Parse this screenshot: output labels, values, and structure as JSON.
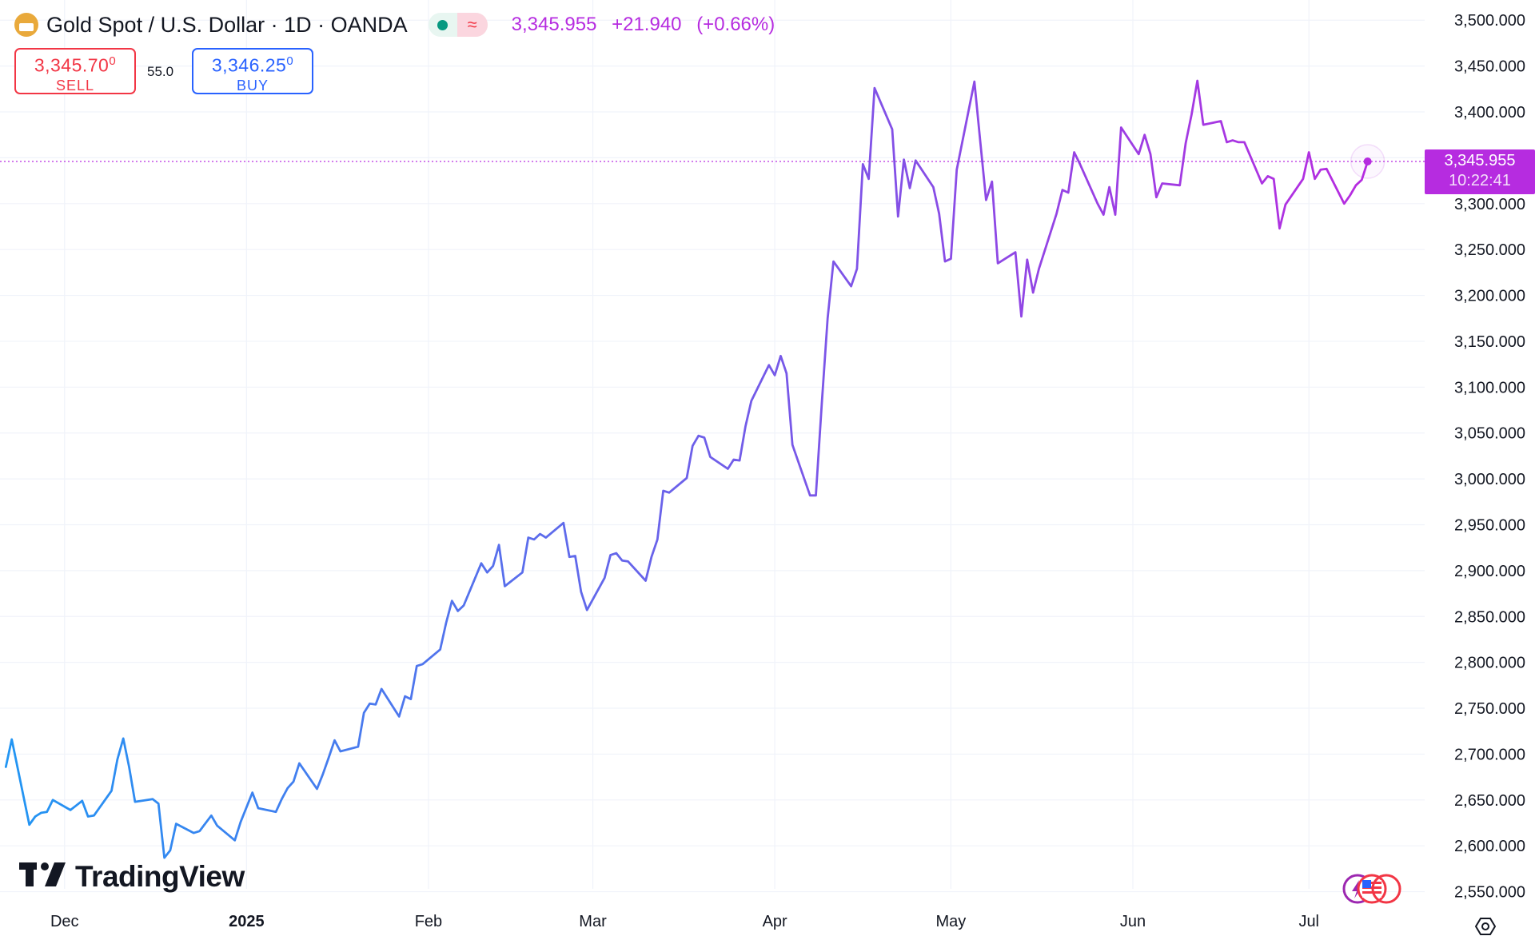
{
  "header": {
    "symbol": "Gold Spot / U.S. Dollar · 1D · OANDA",
    "market_status": "open",
    "delayed_icon": "≈",
    "last_price": "3,345.955",
    "change": "+21.940",
    "change_pct": "(+0.66%)"
  },
  "trade": {
    "sell_price": "3,345.70",
    "sell_price_sup": "0",
    "sell_label": "SELL",
    "spread": "55.0",
    "buy_price": "3,346.25",
    "buy_price_sup": "0",
    "buy_label": "BUY"
  },
  "last_tag": {
    "price": "3,345.955",
    "countdown": "10:22:41"
  },
  "watermark": "TradingView",
  "colors": {
    "line_start": "#2196f3",
    "line_end": "#b62ce0",
    "sell": "#f23645",
    "buy": "#2962ff",
    "grid": "#f0f3fa",
    "axis_text": "#131722"
  },
  "icons": {
    "logo": "gold-coin-icon",
    "settings": "gear-icon",
    "badge": "us-flag-icon"
  },
  "chart_data": {
    "type": "line",
    "title": "Gold Spot / U.S. Dollar · 1D · OANDA",
    "xlabel": "",
    "ylabel": "",
    "grid": true,
    "ylim": [
      2520,
      3522
    ],
    "y_ticks": [
      "3,500.000",
      "3,450.000",
      "3,400.000",
      "3,350.000",
      "3,300.000",
      "3,250.000",
      "3,200.000",
      "3,150.000",
      "3,100.000",
      "3,050.000",
      "3,000.000",
      "2,950.000",
      "2,900.000",
      "2,850.000",
      "2,800.000",
      "2,750.000",
      "2,700.000",
      "2,650.000",
      "2,600.000",
      "2,550.000"
    ],
    "y_tick_values": [
      3500,
      3450,
      3400,
      3350,
      3300,
      3250,
      3200,
      3150,
      3100,
      3050,
      3000,
      2950,
      2900,
      2850,
      2800,
      2750,
      2700,
      2650,
      2600,
      2550
    ],
    "x_ticks": [
      "Dec",
      "2025",
      "Feb",
      "Mar",
      "Apr",
      "May",
      "Jun",
      "Jul"
    ],
    "x_tick_dates": [
      "2024-12-01",
      "2025-01-01",
      "2025-02-01",
      "2025-03-01",
      "2025-04-01",
      "2025-05-01",
      "2025-06-01",
      "2025-07-01"
    ],
    "x_tick_bold": [
      false,
      true,
      false,
      false,
      false,
      false,
      false,
      false
    ],
    "series": [
      {
        "x": [
          "2024-11-21",
          "2024-11-22",
          "2024-11-25",
          "2024-11-26",
          "2024-11-27",
          "2024-11-28",
          "2024-11-29",
          "2024-12-02",
          "2024-12-03",
          "2024-12-04",
          "2024-12-05",
          "2024-12-06",
          "2024-12-09",
          "2024-12-10",
          "2024-12-11",
          "2024-12-12",
          "2024-12-13",
          "2024-12-16",
          "2024-12-17",
          "2024-12-18",
          "2024-12-19",
          "2024-12-20",
          "2024-12-23",
          "2024-12-24",
          "2024-12-26",
          "2024-12-27",
          "2024-12-30",
          "2024-12-31",
          "2025-01-02",
          "2025-01-03",
          "2025-01-06",
          "2025-01-07",
          "2025-01-08",
          "2025-01-09",
          "2025-01-10",
          "2025-01-13",
          "2025-01-14",
          "2025-01-15",
          "2025-01-16",
          "2025-01-17",
          "2025-01-20",
          "2025-01-21",
          "2025-01-22",
          "2025-01-23",
          "2025-01-24",
          "2025-01-27",
          "2025-01-28",
          "2025-01-29",
          "2025-01-30",
          "2025-01-31",
          "2025-02-03",
          "2025-02-04",
          "2025-02-05",
          "2025-02-06",
          "2025-02-07",
          "2025-02-10",
          "2025-02-11",
          "2025-02-12",
          "2025-02-13",
          "2025-02-14",
          "2025-02-17",
          "2025-02-18",
          "2025-02-19",
          "2025-02-20",
          "2025-02-21",
          "2025-02-24",
          "2025-02-25",
          "2025-02-26",
          "2025-02-27",
          "2025-02-28",
          "2025-03-03",
          "2025-03-04",
          "2025-03-05",
          "2025-03-06",
          "2025-03-07",
          "2025-03-10",
          "2025-03-11",
          "2025-03-12",
          "2025-03-13",
          "2025-03-14",
          "2025-03-17",
          "2025-03-18",
          "2025-03-19",
          "2025-03-20",
          "2025-03-21",
          "2025-03-24",
          "2025-03-25",
          "2025-03-26",
          "2025-03-27",
          "2025-03-28",
          "2025-03-31",
          "2025-04-01",
          "2025-04-02",
          "2025-04-03",
          "2025-04-04",
          "2025-04-07",
          "2025-04-08",
          "2025-04-09",
          "2025-04-10",
          "2025-04-11",
          "2025-04-14",
          "2025-04-15",
          "2025-04-16",
          "2025-04-17",
          "2025-04-18",
          "2025-04-21",
          "2025-04-22",
          "2025-04-23",
          "2025-04-24",
          "2025-04-25",
          "2025-04-28",
          "2025-04-29",
          "2025-04-30",
          "2025-05-01",
          "2025-05-02",
          "2025-05-05",
          "2025-05-06",
          "2025-05-07",
          "2025-05-08",
          "2025-05-09",
          "2025-05-12",
          "2025-05-13",
          "2025-05-14",
          "2025-05-15",
          "2025-05-16",
          "2025-05-19",
          "2025-05-20",
          "2025-05-21",
          "2025-05-22",
          "2025-05-23",
          "2025-05-26",
          "2025-05-27",
          "2025-05-28",
          "2025-05-29",
          "2025-05-30",
          "2025-06-02",
          "2025-06-03",
          "2025-06-04",
          "2025-06-05",
          "2025-06-06",
          "2025-06-09",
          "2025-06-10",
          "2025-06-11",
          "2025-06-12",
          "2025-06-13",
          "2025-06-16",
          "2025-06-17",
          "2025-06-18",
          "2025-06-19",
          "2025-06-20",
          "2025-06-23",
          "2025-06-24",
          "2025-06-25",
          "2025-06-26",
          "2025-06-27",
          "2025-06-30",
          "2025-07-01",
          "2025-07-02",
          "2025-07-03",
          "2025-07-04",
          "2025-07-07",
          "2025-07-08",
          "2025-07-09",
          "2025-07-10",
          "2025-07-11"
        ],
        "values": [
          2686,
          2716,
          2623,
          2632,
          2636,
          2637,
          2650,
          2639,
          2644,
          2649,
          2632,
          2633,
          2660,
          2694,
          2717,
          2686,
          2648,
          2651,
          2646,
          2587,
          2595,
          2624,
          2614,
          2616,
          2633,
          2622,
          2606,
          2626,
          2658,
          2641,
          2637,
          2651,
          2663,
          2670,
          2690,
          2662,
          2678,
          2696,
          2715,
          2703,
          2708,
          2745,
          2755,
          2754,
          2771,
          2741,
          2763,
          2760,
          2796,
          2798,
          2814,
          2843,
          2867,
          2856,
          2862,
          2908,
          2898,
          2905,
          2928,
          2883,
          2898,
          2936,
          2934,
          2940,
          2936,
          2952,
          2915,
          2916,
          2877,
          2857,
          2892,
          2917,
          2919,
          2911,
          2910,
          2889,
          2915,
          2934,
          2987,
          2985,
          3001,
          3036,
          3047,
          3045,
          3024,
          3011,
          3021,
          3020,
          3057,
          3085,
          3124,
          3113,
          3134,
          3115,
          3037,
          2982,
          2982,
          3082,
          3175,
          3237,
          3210,
          3229,
          3343,
          3327,
          3426,
          3381,
          3286,
          3348,
          3317,
          3347,
          3318,
          3289,
          3237,
          3240,
          3337,
          3433,
          3368,
          3304,
          3324,
          3235,
          3247,
          3177,
          3239,
          3203,
          3229,
          3289,
          3315,
          3312,
          3356,
          3343,
          3300,
          3288,
          3318,
          3288,
          3383,
          3354,
          3375,
          3354,
          3307,
          3322,
          3320,
          3366,
          3397,
          3434,
          3386,
          3390,
          3367,
          3369,
          3367,
          3367,
          3322,
          3330,
          3327,
          3273,
          3299,
          3327,
          3356,
          3327,
          3337,
          3338,
          3300,
          3309,
          3320,
          3326,
          3346
        ]
      }
    ],
    "annotations": [
      "3,345.955 · 10:22:41"
    ]
  }
}
